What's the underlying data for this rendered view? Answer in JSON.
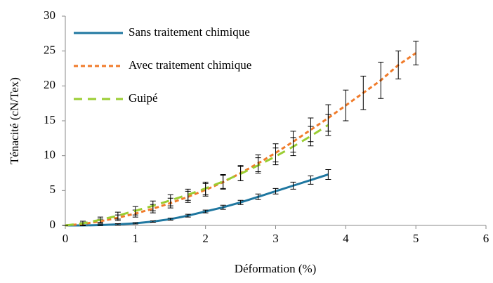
{
  "chart_data": {
    "type": "line",
    "xlabel": "Déformation (%)",
    "ylabel": "Ténacité (cN/Tex)",
    "xlim": [
      0,
      6
    ],
    "xticks": [
      0,
      1,
      2,
      3,
      4,
      5,
      6
    ],
    "ylim": [
      0,
      30
    ],
    "yticks": [
      0,
      5,
      10,
      15,
      20,
      25,
      30
    ],
    "grid": false,
    "legend": "upper left",
    "series": [
      {
        "name": "Sans traitement chimique",
        "color": "#1f77a0",
        "dash": "solid",
        "x": [
          0,
          0.25,
          0.5,
          0.75,
          1,
          1.25,
          1.5,
          1.75,
          2,
          2.25,
          2.5,
          2.75,
          3,
          3.25,
          3.5,
          3.75
        ],
        "values": [
          0,
          0,
          0.05,
          0.15,
          0.3,
          0.55,
          0.9,
          1.4,
          2.0,
          2.6,
          3.3,
          4.1,
          4.9,
          5.7,
          6.5,
          7.3
        ],
        "errors": [
          0,
          0.05,
          0.05,
          0.1,
          0.1,
          0.1,
          0.15,
          0.2,
          0.2,
          0.3,
          0.3,
          0.4,
          0.4,
          0.5,
          0.6,
          0.7
        ]
      },
      {
        "name": "Avec traitement chimique",
        "color": "#f07b2a",
        "dash": "dashed",
        "x": [
          0,
          0.25,
          0.5,
          0.75,
          1,
          1.25,
          1.5,
          1.75,
          2,
          2.25,
          2.5,
          2.75,
          3,
          3.25,
          3.5,
          3.75,
          4,
          4.25,
          4.5,
          4.75,
          5
        ],
        "values": [
          0,
          0.2,
          0.6,
          1.1,
          1.7,
          2.4,
          3.2,
          4.1,
          5.1,
          6.2,
          7.5,
          8.9,
          10.4,
          12,
          13.7,
          15.4,
          17.2,
          19,
          20.8,
          23,
          24.7
        ],
        "errors": [
          0,
          0.2,
          0.3,
          0.4,
          0.5,
          0.6,
          0.7,
          0.8,
          0.9,
          1.0,
          1.1,
          1.2,
          1.3,
          1.5,
          1.7,
          1.9,
          2.2,
          2.4,
          2.6,
          2.0,
          1.7
        ]
      },
      {
        "name": "Guipé",
        "color": "#9acd32",
        "dash": "longdash",
        "x": [
          0,
          0.25,
          0.5,
          0.75,
          1,
          1.25,
          1.5,
          1.75,
          2,
          2.25,
          2.5,
          2.75,
          3,
          3.25,
          3.5,
          3.75
        ],
        "values": [
          0,
          0.3,
          0.8,
          1.4,
          2.1,
          2.8,
          3.6,
          4.4,
          5.3,
          6.3,
          7.4,
          8.6,
          9.9,
          11.3,
          12.8,
          14.4
        ],
        "errors": [
          0,
          0.3,
          0.4,
          0.5,
          0.6,
          0.7,
          0.8,
          0.8,
          0.9,
          1.0,
          1.0,
          1.1,
          1.2,
          1.3,
          1.4,
          1.5
        ]
      }
    ]
  }
}
